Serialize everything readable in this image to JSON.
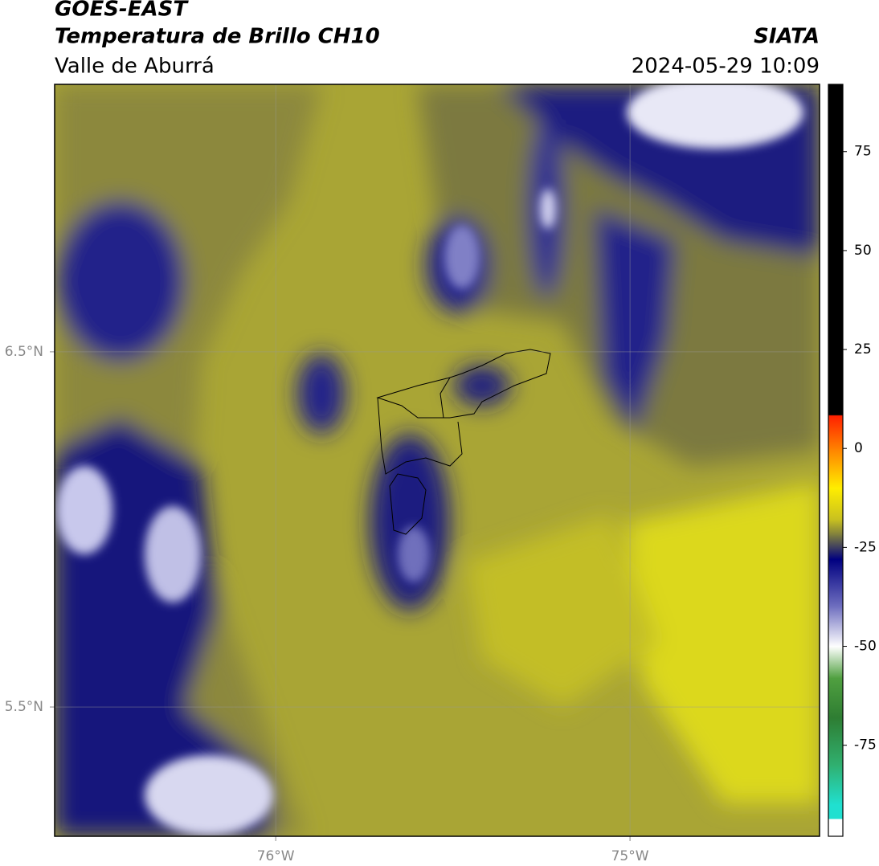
{
  "header": {
    "title": "GOES-EAST",
    "subtitle": "Temperatura de Brillo CH10",
    "region": "Valle de Aburrá",
    "source": "SIATA",
    "datetime": "2024-05-29 10:09"
  },
  "map": {
    "lonlim": [
      -76.624,
      -74.465
    ],
    "latlim": [
      5.136,
      7.253
    ],
    "lon_ticks": [
      {
        "value": -76,
        "label": "76°W"
      },
      {
        "value": -75,
        "label": "75°W"
      }
    ],
    "lat_ticks": [
      {
        "value": 6.5,
        "label": "6.5°N"
      },
      {
        "value": 5.5,
        "label": "5.5°N"
      }
    ],
    "grid": true
  },
  "colorbar": {
    "lim": [
      -98,
      92
    ],
    "ticks": [
      75,
      50,
      25,
      0,
      -25,
      -50,
      -75
    ],
    "colormap": [
      {
        "value": 92,
        "color": "#000000"
      },
      {
        "value": 8.5,
        "color": "#000000"
      },
      {
        "value": 8.3,
        "color": "#ff2000"
      },
      {
        "value": 0,
        "color": "#ff8000"
      },
      {
        "value": -10,
        "color": "#ffee00"
      },
      {
        "value": -18,
        "color": "#c8c020"
      },
      {
        "value": -22,
        "color": "#7a7a40"
      },
      {
        "value": -28,
        "color": "#000080"
      },
      {
        "value": -40,
        "color": "#7070c0"
      },
      {
        "value": -50,
        "color": "#ffffff"
      },
      {
        "value": -58,
        "color": "#50a040"
      },
      {
        "value": -68,
        "color": "#2e7d32"
      },
      {
        "value": -80,
        "color": "#30b070"
      },
      {
        "value": -90,
        "color": "#20e0d0"
      },
      {
        "value": -93.5,
        "color": "#20e0d0"
      },
      {
        "value": -93.7,
        "color": "#ffffff"
      },
      {
        "value": -98,
        "color": "#ffffff"
      }
    ]
  }
}
